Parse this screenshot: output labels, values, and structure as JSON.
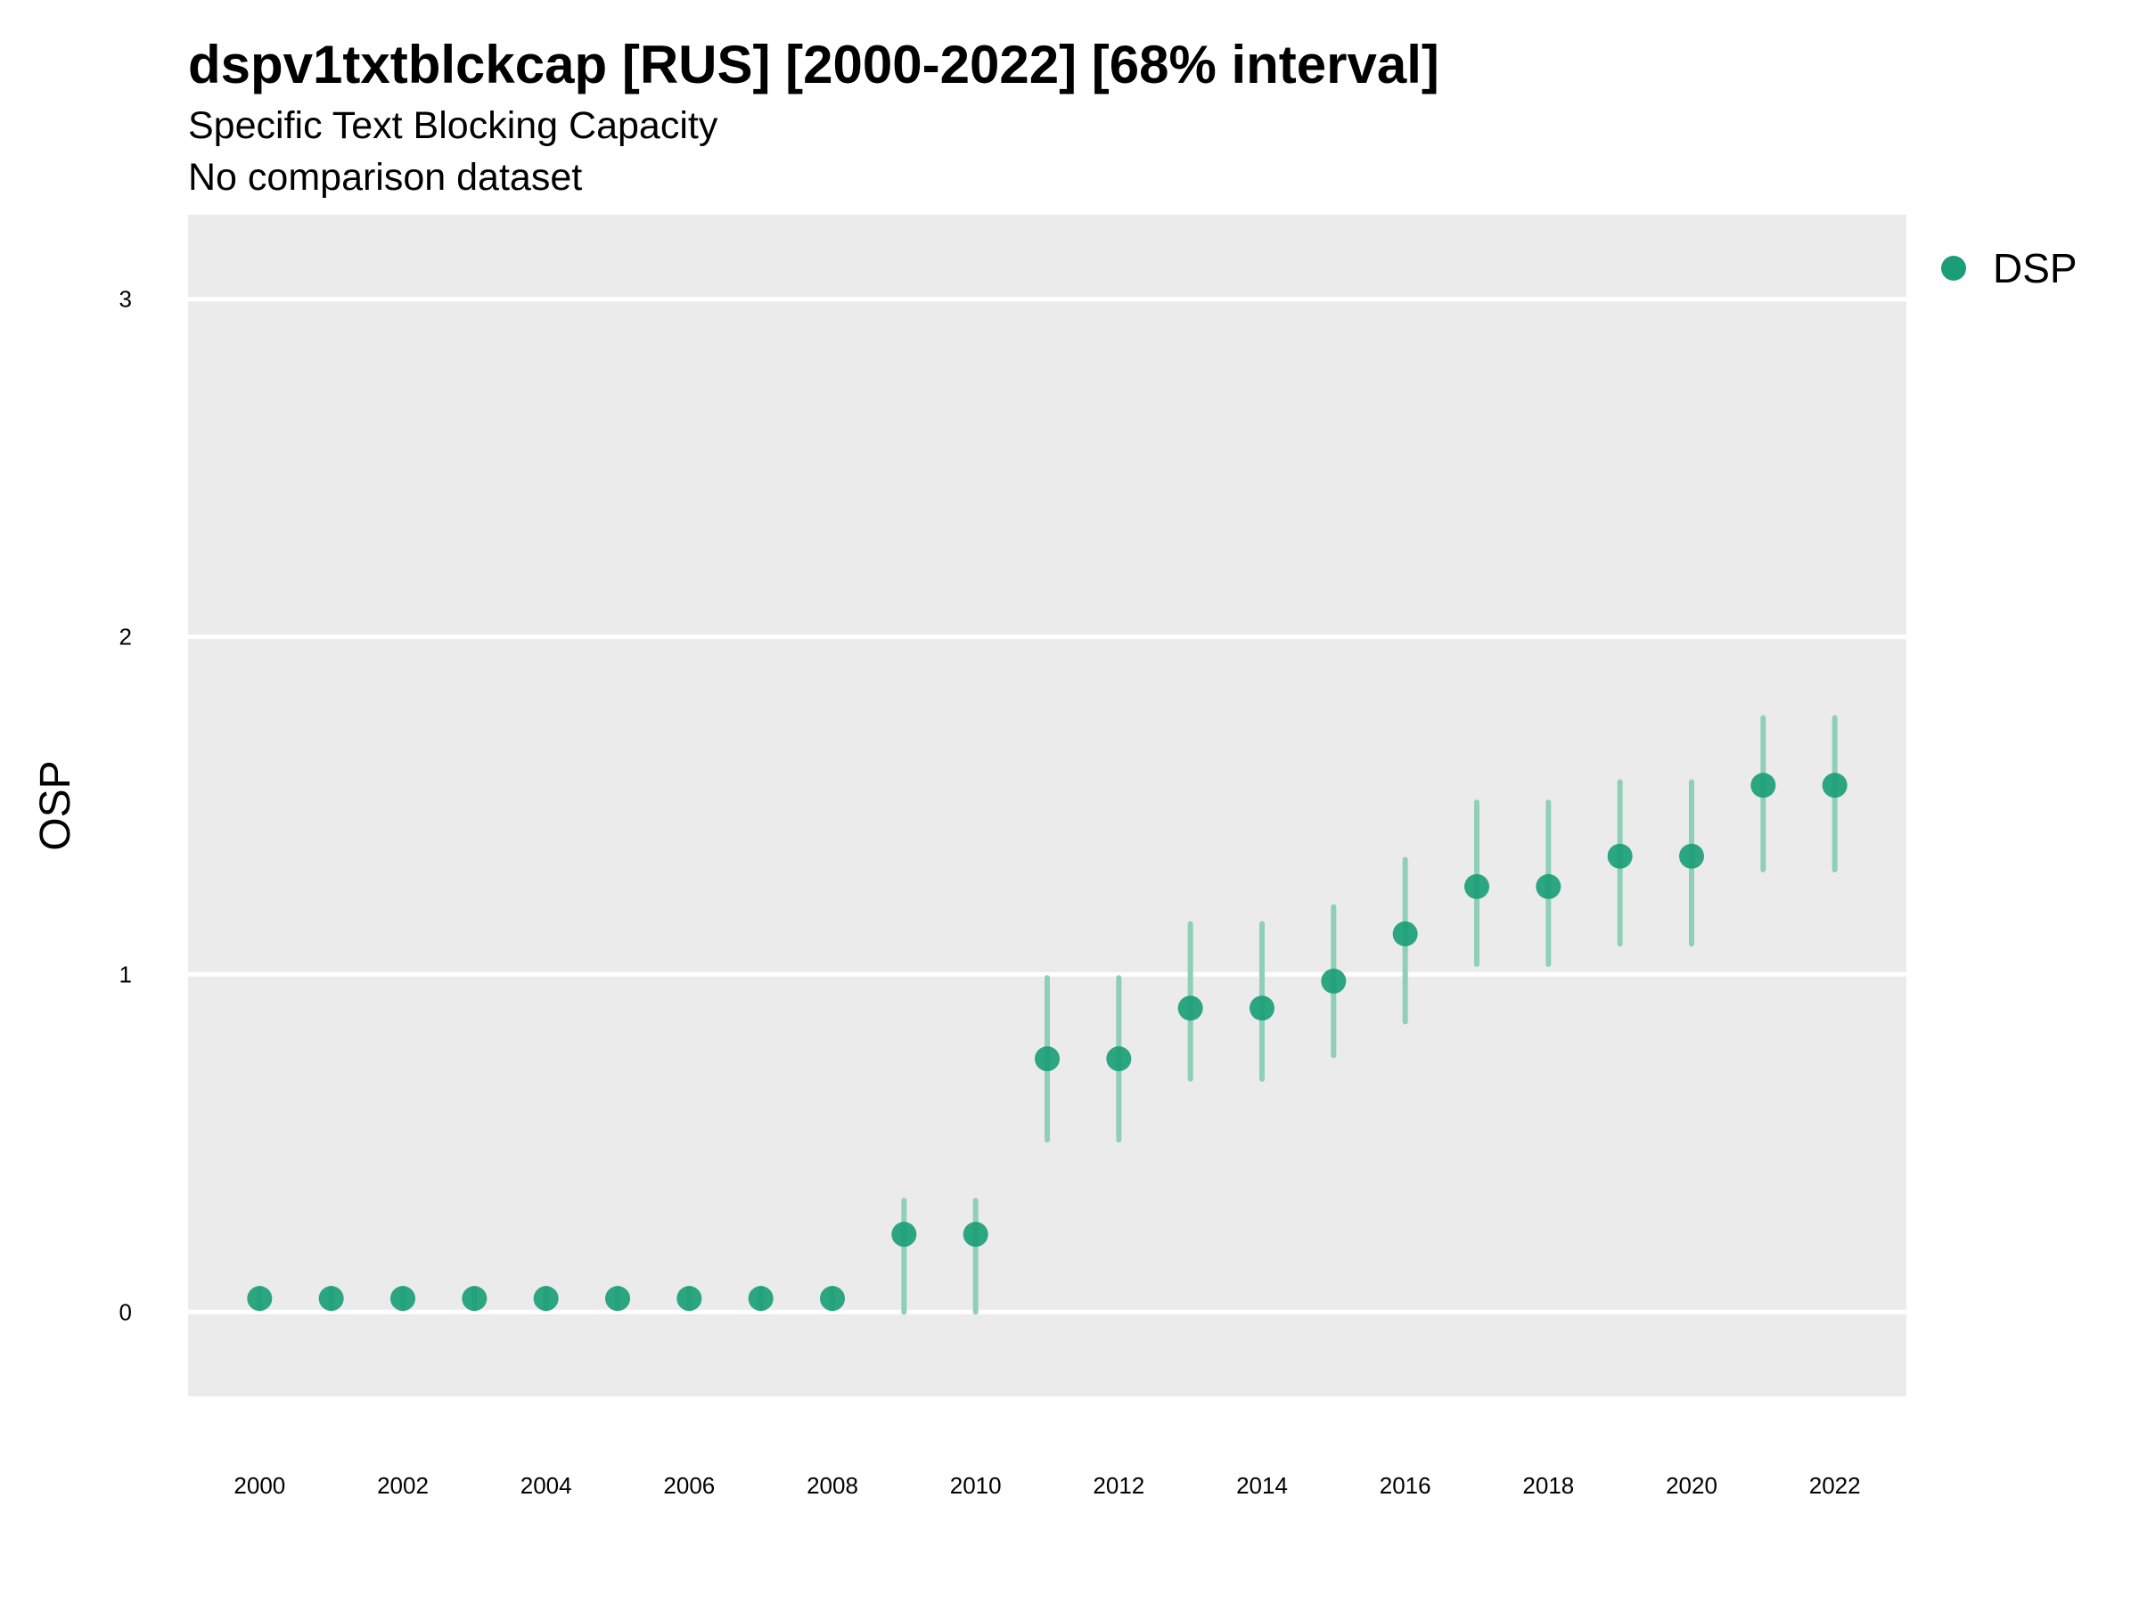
{
  "chart_data": {
    "type": "scatter",
    "title": "dspv1txtblckcap [RUS] [2000-2022] [68% interval]",
    "subtitle": "Specific Text Blocking Capacity",
    "caption_line": "No comparison dataset",
    "ylabel": "OSP",
    "xlabel": "",
    "xlim": [
      1999,
      2023
    ],
    "ylim": [
      -0.25,
      3.25
    ],
    "x_ticks": [
      2000,
      2002,
      2004,
      2006,
      2008,
      2010,
      2012,
      2014,
      2016,
      2018,
      2020,
      2022
    ],
    "y_ticks": [
      0,
      1,
      2,
      3
    ],
    "grid": true,
    "legend_position": "right",
    "colors": {
      "point": "#1b9e77",
      "interval": "#8fcfb8",
      "panel": "#ebebeb",
      "grid": "#ffffff"
    },
    "series": [
      {
        "name": "DSP",
        "x": [
          2000,
          2001,
          2002,
          2003,
          2004,
          2005,
          2006,
          2007,
          2008,
          2009,
          2010,
          2011,
          2012,
          2013,
          2014,
          2015,
          2016,
          2017,
          2018,
          2019,
          2020,
          2021,
          2022
        ],
        "y": [
          0.04,
          0.04,
          0.04,
          0.04,
          0.04,
          0.04,
          0.04,
          0.04,
          0.04,
          0.23,
          0.23,
          0.75,
          0.75,
          0.9,
          0.9,
          0.98,
          1.12,
          1.26,
          1.26,
          1.35,
          1.35,
          1.56,
          1.56
        ],
        "lower": [
          0.01,
          0.01,
          0.01,
          0.01,
          0.01,
          0.01,
          0.01,
          0.01,
          0.01,
          0.0,
          0.0,
          0.51,
          0.51,
          0.69,
          0.69,
          0.76,
          0.86,
          1.03,
          1.03,
          1.09,
          1.09,
          1.31,
          1.31
        ],
        "upper": [
          0.07,
          0.07,
          0.07,
          0.07,
          0.07,
          0.07,
          0.07,
          0.07,
          0.07,
          0.33,
          0.33,
          0.99,
          0.99,
          1.15,
          1.15,
          1.2,
          1.34,
          1.51,
          1.51,
          1.57,
          1.57,
          1.76,
          1.76
        ]
      }
    ]
  }
}
